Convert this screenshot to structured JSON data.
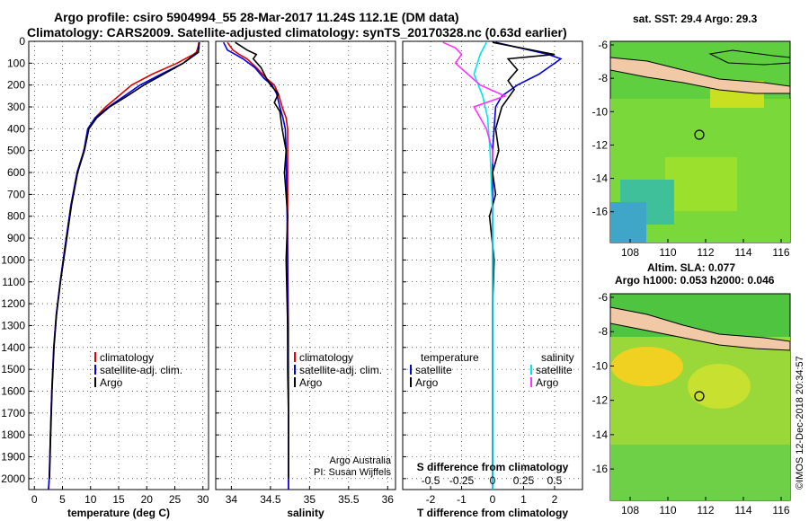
{
  "header": {
    "title_line1": "Argo profile: csiro 5904994_55 28-Mar-2017 11.24S 112.1E (DM data)",
    "title_line2": "Climatology: CARS2009. Satellite-adjusted climatology: synTS_20170328.nc (0.63d earlier)"
  },
  "colors": {
    "climatology": "#e00000",
    "satellite": "#0000e0",
    "argo": "#000000",
    "argo_salinity_diff": "#ff33ff",
    "satellite_salinity_diff": "#00e5e5",
    "land": "#f2c9a6"
  },
  "chart_data": [
    {
      "type": "line",
      "xlabel": "temperature (deg C)",
      "xlim": [
        -1,
        31
      ],
      "xticks": [
        0,
        5,
        10,
        15,
        20,
        25,
        30
      ],
      "ylim": [
        2050,
        0
      ],
      "yticks": [
        0,
        100,
        200,
        300,
        400,
        500,
        600,
        700,
        800,
        900,
        1000,
        1100,
        1200,
        1300,
        1400,
        1500,
        1600,
        1700,
        1800,
        1900,
        2000
      ],
      "legend": [
        "climatology",
        "satellite-adj. clim.",
        "Argo"
      ],
      "legend_position": "lower-center",
      "series": [
        {
          "name": "climatology",
          "x": [
            29.3,
            29.1,
            28.8,
            28.3,
            25.4,
            21,
            17.3,
            15,
            12.7,
            10.8,
            9.6,
            8.8,
            7.6,
            6.5,
            5.4,
            4.6,
            3.9,
            3.45,
            3.1,
            2.85,
            2.65,
            2.5
          ],
          "y": [
            5,
            30,
            50,
            60,
            100,
            150,
            200,
            250,
            300,
            350,
            400,
            500,
            600,
            750,
            950,
            1100,
            1250,
            1400,
            1600,
            1800,
            2000,
            2050
          ]
        },
        {
          "name": "satellite-adj. clim.",
          "x": [
            29.4,
            29.2,
            29.2,
            28.7,
            26.5,
            22.6,
            18.8,
            16,
            13.2,
            10.8,
            9.5,
            8.8,
            7.6,
            6.5,
            5.4,
            4.6,
            3.9,
            3.45,
            3.1,
            2.85,
            2.65,
            2.5
          ],
          "y": [
            5,
            30,
            50,
            60,
            100,
            150,
            200,
            250,
            300,
            350,
            400,
            500,
            600,
            750,
            950,
            1100,
            1250,
            1400,
            1600,
            1800,
            2000,
            2050
          ]
        },
        {
          "name": "Argo",
          "x": [
            29.3,
            29.3,
            29.1,
            28.5,
            26.5,
            23,
            19.5,
            16.5,
            13.4,
            11.1,
            9.7,
            8.9,
            7.7,
            6.6,
            5.5,
            4.65,
            3.95,
            3.5,
            3.15,
            2.9,
            2.7
          ],
          "y": [
            5,
            30,
            50,
            60,
            100,
            150,
            200,
            250,
            300,
            350,
            400,
            500,
            600,
            750,
            950,
            1100,
            1250,
            1400,
            1600,
            1800,
            2000
          ]
        }
      ]
    },
    {
      "type": "line",
      "xlabel": "salinity",
      "xlim": [
        33.8,
        36.1
      ],
      "xticks": [
        34,
        34.5,
        35,
        35.5,
        36
      ],
      "ylim": [
        2050,
        0
      ],
      "legend": [
        "climatology",
        "satellite-adj. clim.",
        "Argo"
      ],
      "legend_position": "lower-right",
      "annotations": [
        "Argo Australia",
        "PI: Susan Wijffels"
      ],
      "series": [
        {
          "name": "climatology",
          "x": [
            33.95,
            34.02,
            34.1,
            34.2,
            34.32,
            34.45,
            34.55,
            34.6,
            34.65,
            34.7,
            34.72,
            34.72,
            34.72,
            34.72,
            34.73,
            34.73,
            34.73,
            34.73
          ],
          "y": [
            5,
            40,
            60,
            80,
            120,
            170,
            200,
            240,
            300,
            350,
            400,
            500,
            700,
            1000,
            1300,
            1600,
            1900,
            2050
          ]
        },
        {
          "name": "satellite-adj. clim.",
          "x": [
            33.9,
            33.95,
            34.05,
            34.15,
            34.3,
            34.42,
            34.52,
            34.58,
            34.62,
            34.66,
            34.69,
            34.7,
            34.71,
            34.72,
            34.72,
            34.73,
            34.73,
            34.73
          ],
          "y": [
            5,
            40,
            60,
            80,
            120,
            170,
            200,
            240,
            300,
            350,
            400,
            500,
            700,
            1000,
            1300,
            1600,
            1900,
            2050
          ]
        },
        {
          "name": "Argo",
          "x": [
            34.05,
            34.2,
            34.32,
            34.28,
            34.38,
            34.45,
            34.5,
            34.6,
            34.55,
            34.62,
            34.65,
            34.7,
            34.68,
            34.72,
            34.7,
            34.72,
            34.72,
            34.73,
            34.73,
            34.73
          ],
          "y": [
            5,
            40,
            60,
            80,
            120,
            170,
            200,
            240,
            280,
            320,
            400,
            500,
            600,
            800,
            1000,
            1300,
            1500,
            1700,
            1900,
            2000
          ]
        }
      ]
    },
    {
      "type": "line",
      "xlabel": "T difference from climatology",
      "xlim": [
        -2.9,
        2.9
      ],
      "xticks": [
        -2,
        -1,
        0,
        1,
        2
      ],
      "secondary_xlabel": "S difference from climatology",
      "secondary_xticks": [
        "-0.5",
        "-0.25",
        "0",
        "0.25",
        "0.5"
      ],
      "ylim": [
        2050,
        0
      ],
      "legend": [
        "temperature",
        "satellite",
        "Argo",
        "salinity",
        "satellite",
        "Argo"
      ],
      "legend_position": "lower",
      "series": [
        {
          "name": "temperature satellite",
          "x": [
            0.1,
            1.8,
            2.2,
            1.5,
            0.8,
            0.3,
            0.1,
            0.05,
            0,
            0,
            0,
            0,
            0
          ],
          "y": [
            5,
            60,
            80,
            150,
            200,
            250,
            300,
            400,
            500,
            800,
            1200,
            1600,
            2050
          ]
        },
        {
          "name": "temperature Argo",
          "x": [
            0,
            2.0,
            0.5,
            0.8,
            0.5,
            0.7,
            0.5,
            0.3,
            0.1,
            0.2,
            0,
            0.1,
            -0.1,
            0.05,
            0,
            0,
            0,
            0
          ],
          "y": [
            5,
            60,
            80,
            130,
            180,
            220,
            260,
            300,
            400,
            500,
            600,
            700,
            800,
            1000,
            1200,
            1500,
            1800,
            2000
          ]
        },
        {
          "name": "salinity satellite",
          "x": [
            -0.05,
            -0.1,
            -0.15,
            -0.08,
            -0.04,
            -0.02,
            0,
            0,
            0
          ],
          "y": [
            5,
            60,
            150,
            250,
            350,
            500,
            800,
            1500,
            2050
          ]
        },
        {
          "name": "salinity Argo",
          "x": [
            -0.4,
            -0.3,
            -0.25,
            -0.3,
            -0.2,
            -0.1,
            0.1,
            -0.15,
            -0.05,
            0,
            0
          ],
          "y": [
            5,
            30,
            60,
            100,
            150,
            200,
            250,
            300,
            400,
            500,
            560
          ]
        }
      ]
    }
  ],
  "maps": {
    "top": {
      "title": "sat. SST: 29.4 Argo: 29.3",
      "xticks": [
        "108",
        "110",
        "112",
        "114",
        "116"
      ],
      "yticks": [
        "-6",
        "-8",
        "-10",
        "-12",
        "-14",
        "-16"
      ]
    },
    "bottom": {
      "title_line1": "Altim. SLA: 0.077",
      "title_line2": "Argo h1000: 0.053 h2000: 0.046",
      "xticks": [
        "108",
        "110",
        "112",
        "114",
        "116"
      ],
      "yticks": [
        "-6",
        "-8",
        "-10",
        "-12",
        "-14",
        "-16"
      ]
    }
  },
  "credit": "©IMOS 12-Dec-2018 20:34:57"
}
